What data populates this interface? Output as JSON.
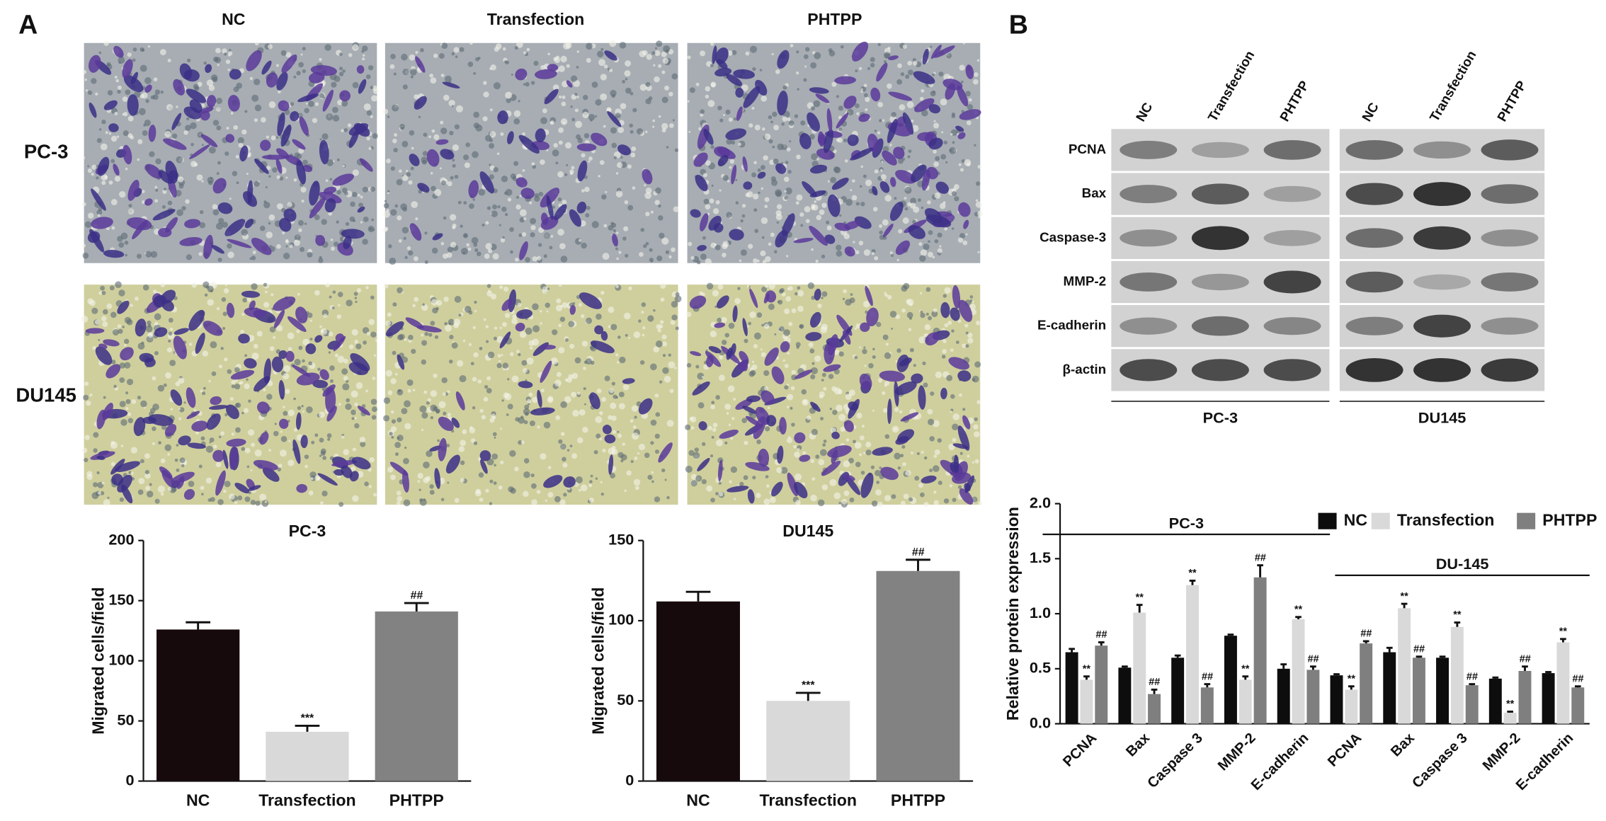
{
  "figure": {
    "panel_a": "A",
    "panel_b": "B",
    "micrograph_columns": [
      "NC",
      "Transfection",
      "PHTPP"
    ],
    "micrograph_rows": [
      "PC-3",
      "DU145"
    ],
    "blot_columns": [
      "NC",
      "Transfection",
      "PHTPP",
      "NC",
      "Transfection",
      "PHTPP"
    ],
    "blot_rows": [
      "PCNA",
      "Bax",
      "Caspase-3",
      "MMP-2",
      "E-cadherin",
      "β-actin"
    ],
    "blot_groups": [
      "PC-3",
      "DU145"
    ]
  },
  "chart_data": [
    {
      "type": "bar",
      "title": "PC-3",
      "y_label": "Migrated cells/field",
      "categories": [
        "NC",
        "Transfection",
        "PHTPP"
      ],
      "values": [
        126,
        41,
        141
      ],
      "errors": [
        6,
        5,
        7
      ],
      "significance": [
        null,
        "***",
        "##"
      ],
      "colors": [
        "#160a0c",
        "#d9d9d9",
        "#828282"
      ],
      "ylim": [
        0,
        200
      ],
      "yticks": [
        0,
        50,
        100,
        150,
        200
      ]
    },
    {
      "type": "bar",
      "title": "DU145",
      "y_label": "Migrated cells/field",
      "categories": [
        "NC",
        "Transfection",
        "PHTPP"
      ],
      "values": [
        112,
        50,
        131
      ],
      "errors": [
        6,
        5,
        7
      ],
      "significance": [
        null,
        "***",
        "##"
      ],
      "colors": [
        "#160a0c",
        "#d9d9d9",
        "#828282"
      ],
      "ylim": [
        0,
        150
      ],
      "yticks": [
        0,
        50,
        100,
        150
      ]
    },
    {
      "type": "grouped_bar",
      "y_label": "Relative protein expression",
      "categories": [
        "PCNA",
        "Bax",
        "Caspase 3",
        "MMP-2",
        "E-cadherin",
        "PCNA",
        "Bax",
        "Caspase 3",
        "MMP-2",
        "E-cadherin"
      ],
      "groups": [
        "PC-3",
        "DU-145"
      ],
      "series": [
        {
          "name": "NC",
          "color": "#0d0d0d",
          "values": [
            0.65,
            0.51,
            0.6,
            0.8,
            0.5,
            0.44,
            0.65,
            0.6,
            0.41,
            0.46
          ],
          "errors": [
            0.03,
            0.01,
            0.02,
            0.01,
            0.04,
            0.01,
            0.04,
            0.01,
            0.01,
            0.01
          ]
        },
        {
          "name": "Transfection",
          "color": "#d9d9d9",
          "values": [
            0.4,
            1.01,
            1.26,
            0.4,
            0.95,
            0.31,
            1.05,
            0.88,
            0.1,
            0.74
          ],
          "errors": [
            0.03,
            0.07,
            0.04,
            0.03,
            0.02,
            0.03,
            0.04,
            0.04,
            0.01,
            0.03
          ],
          "significance": [
            "**",
            "**",
            "**",
            "**",
            "**",
            "**",
            "**",
            "**",
            "**",
            "**"
          ]
        },
        {
          "name": "PHTPP",
          "color": "#7f7f7f",
          "values": [
            0.71,
            0.27,
            0.33,
            1.33,
            0.49,
            0.73,
            0.6,
            0.35,
            0.48,
            0.33
          ],
          "errors": [
            0.03,
            0.04,
            0.03,
            0.11,
            0.03,
            0.02,
            0.01,
            0.01,
            0.04,
            0.01
          ],
          "significance": [
            "##",
            "##",
            "##",
            "##",
            "##",
            "##",
            "##",
            "##",
            "##",
            "##"
          ]
        }
      ],
      "ylim": [
        0,
        2
      ],
      "yticks": [
        {
          "value": 0,
          "label": "0.0"
        },
        {
          "value": 0.5,
          "label": "0.5"
        },
        {
          "value": 1,
          "label": "1.0"
        },
        {
          "value": 1.5,
          "label": "1.5"
        },
        {
          "value": 2,
          "label": "2.0"
        }
      ],
      "legend": "top-right"
    }
  ]
}
